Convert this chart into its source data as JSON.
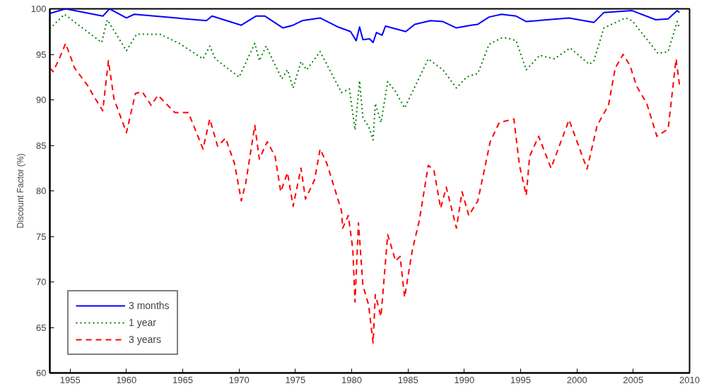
{
  "chart_data": {
    "type": "line",
    "ylabel": "Discount Factor (%)",
    "xlim": [
      1953.2,
      2010
    ],
    "ylim": [
      60,
      100
    ],
    "xticks": [
      1955,
      1960,
      1965,
      1970,
      1975,
      1980,
      1985,
      1990,
      1995,
      2000,
      2005,
      2010
    ],
    "yticks": [
      60,
      65,
      70,
      75,
      80,
      85,
      90,
      95,
      100
    ],
    "grid": false,
    "legend": "bottom left",
    "marker": "none",
    "series": [
      {
        "name": "3 months",
        "color": "#0000ff",
        "line_style": "solid",
        "x": [
          1953.2,
          1954.6,
          1957.9,
          1958.5,
          1960.0,
          1960.7,
          1967.1,
          1967.6,
          1970.2,
          1971.5,
          1972.3,
          1973.9,
          1974.8,
          1975.6,
          1977.2,
          1978.8,
          1979.9,
          1980.4,
          1980.7,
          1981.0,
          1981.6,
          1981.9,
          1982.2,
          1982.7,
          1983.0,
          1984.8,
          1985.6,
          1987.0,
          1988.1,
          1989.3,
          1990.6,
          1991.2,
          1992.2,
          1993.3,
          1994.6,
          1995.5,
          1999.3,
          2001.5,
          2002.4,
          2004.9,
          2007.0,
          2008.1,
          2008.9,
          2009.1
        ],
        "values": [
          99.5,
          100.0,
          99.2,
          100.0,
          99.0,
          99.4,
          98.7,
          99.2,
          98.2,
          99.2,
          99.2,
          97.9,
          98.2,
          98.7,
          99.0,
          98.0,
          97.5,
          96.5,
          98.0,
          96.6,
          96.7,
          96.3,
          97.4,
          97.1,
          98.1,
          97.5,
          98.3,
          98.7,
          98.6,
          97.9,
          98.2,
          98.3,
          99.1,
          99.4,
          99.2,
          98.6,
          99.0,
          98.5,
          99.6,
          99.8,
          98.8,
          98.9,
          99.8,
          99.6
        ]
      },
      {
        "name": "1 year",
        "color": "#008000",
        "line_style": "dotted",
        "x": [
          1953.2,
          1954.5,
          1957.8,
          1958.3,
          1960.0,
          1960.9,
          1963.0,
          1964.7,
          1966.8,
          1967.4,
          1967.9,
          1970.0,
          1971.4,
          1971.8,
          1972.4,
          1973.8,
          1974.3,
          1974.8,
          1975.5,
          1976.0,
          1977.2,
          1979.1,
          1979.8,
          1980.3,
          1980.7,
          1981.0,
          1981.5,
          1981.9,
          1982.1,
          1982.6,
          1983.2,
          1983.9,
          1984.7,
          1985.4,
          1986.8,
          1988.1,
          1989.3,
          1990.2,
          1991.2,
          1992.2,
          1993.3,
          1993.8,
          1994.6,
          1995.5,
          1996.7,
          1998.0,
          1999.4,
          2001.1,
          2001.5,
          2002.4,
          2004.3,
          2004.9,
          2007.2,
          2008.1,
          2008.9,
          2009.1
        ],
        "values": [
          97.8,
          99.4,
          96.3,
          98.8,
          95.4,
          97.2,
          97.2,
          96.2,
          94.5,
          95.9,
          94.5,
          92.5,
          96.2,
          94.3,
          95.9,
          92.3,
          93.3,
          91.3,
          94.2,
          93.3,
          95.3,
          90.8,
          91.2,
          86.7,
          92.1,
          88.0,
          87.1,
          85.6,
          89.6,
          87.5,
          92.0,
          90.9,
          89.1,
          90.9,
          94.5,
          93.3,
          91.3,
          92.5,
          92.9,
          96.1,
          96.8,
          96.8,
          96.5,
          93.3,
          94.9,
          94.5,
          95.7,
          93.9,
          94.3,
          97.9,
          99.0,
          98.7,
          95.1,
          95.3,
          98.6,
          97.9
        ]
      },
      {
        "name": "3 years",
        "color": "#ff0000",
        "line_style": "dashed",
        "x": [
          1953.2,
          1953.5,
          1954.1,
          1954.6,
          1955.4,
          1956.6,
          1957.1,
          1957.9,
          1958.4,
          1958.9,
          1960.0,
          1960.8,
          1961.4,
          1962.2,
          1962.8,
          1964.3,
          1965.5,
          1966.8,
          1967.4,
          1968.1,
          1968.8,
          1969.6,
          1970.2,
          1970.6,
          1971.4,
          1971.8,
          1972.5,
          1973.2,
          1973.7,
          1974.3,
          1974.8,
          1975.5,
          1975.9,
          1976.7,
          1977.2,
          1977.8,
          1979.1,
          1979.2,
          1979.7,
          1980.1,
          1980.3,
          1980.6,
          1981.0,
          1981.5,
          1981.9,
          1982.1,
          1982.6,
          1983.2,
          1983.9,
          1984.3,
          1984.7,
          1985.4,
          1986.0,
          1986.8,
          1987.3,
          1987.9,
          1988.4,
          1989.3,
          1989.8,
          1990.4,
          1991.2,
          1992.3,
          1993.1,
          1994.4,
          1994.9,
          1995.5,
          1995.8,
          1996.6,
          1997.7,
          1999.3,
          2000.9,
          2001.8,
          2002.8,
          2003.4,
          2004.1,
          2004.7,
          2005.3,
          2006.2,
          2007.1,
          2008.1,
          2008.8,
          2009.1
        ],
        "values": [
          93.5,
          93.1,
          94.7,
          96.2,
          93.5,
          91.5,
          90.4,
          88.8,
          94.3,
          90.1,
          86.4,
          90.7,
          90.9,
          89.4,
          90.5,
          88.6,
          88.6,
          84.6,
          87.9,
          84.9,
          85.8,
          83.0,
          78.9,
          80.9,
          87.2,
          83.5,
          85.4,
          83.8,
          79.9,
          82.0,
          78.3,
          82.5,
          79.1,
          81.2,
          84.6,
          83.0,
          77.8,
          75.9,
          77.3,
          73.6,
          67.8,
          76.5,
          69.6,
          67.5,
          63.3,
          68.6,
          66.2,
          75.2,
          72.3,
          72.8,
          68.3,
          73.6,
          76.7,
          82.8,
          82.3,
          78.1,
          80.4,
          75.9,
          79.9,
          77.3,
          78.9,
          85.4,
          87.5,
          87.9,
          82.8,
          79.5,
          83.8,
          86.0,
          82.5,
          87.8,
          82.4,
          87.2,
          89.4,
          93.5,
          95.0,
          93.8,
          91.5,
          89.6,
          86.0,
          86.8,
          94.5,
          91.7
        ]
      }
    ]
  }
}
